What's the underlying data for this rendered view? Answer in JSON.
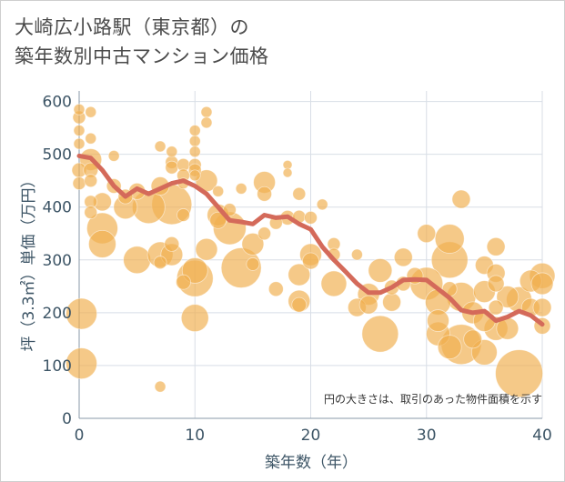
{
  "title": {
    "line1": "大崎広小路駅（東京都）の",
    "line2": "築年数別中古マンション価格"
  },
  "colors": {
    "bubble": "#f0b050",
    "line": "#d46a5a",
    "grid": "#d8dee6",
    "tick": "#3d5566"
  },
  "chart_data": {
    "type": "scatter",
    "title": "大崎広小路駅（東京都）の築年数別中古マンション価格",
    "xlabel": "築年数（年）",
    "ylabel": "坪（3.3㎡）単価（万円）",
    "xlim": [
      0,
      40
    ],
    "ylim": [
      0,
      620
    ],
    "xticks": [
      0,
      10,
      20,
      30,
      40
    ],
    "yticks": [
      0,
      100,
      200,
      300,
      400,
      500,
      600
    ],
    "annotation": "円の大きさは、取引のあった物件面積を示す",
    "grid": true,
    "series": [
      {
        "kind": "bubbles",
        "points": [
          {
            "x": 0,
            "y": 585,
            "s": 6
          },
          {
            "x": 0,
            "y": 570,
            "s": 7
          },
          {
            "x": 0,
            "y": 545,
            "s": 6
          },
          {
            "x": 0,
            "y": 520,
            "s": 6
          },
          {
            "x": 0,
            "y": 470,
            "s": 8
          },
          {
            "x": 0,
            "y": 445,
            "s": 7
          },
          {
            "x": 0.2,
            "y": 198,
            "s": 17
          },
          {
            "x": 0.2,
            "y": 104,
            "s": 17
          },
          {
            "x": 1,
            "y": 580,
            "s": 6
          },
          {
            "x": 1,
            "y": 530,
            "s": 6
          },
          {
            "x": 1,
            "y": 490,
            "s": 12
          },
          {
            "x": 1,
            "y": 470,
            "s": 8
          },
          {
            "x": 1,
            "y": 450,
            "s": 7
          },
          {
            "x": 1,
            "y": 410,
            "s": 7
          },
          {
            "x": 1,
            "y": 390,
            "s": 7
          },
          {
            "x": 2,
            "y": 360,
            "s": 17
          },
          {
            "x": 2,
            "y": 330,
            "s": 15
          },
          {
            "x": 2,
            "y": 410,
            "s": 10
          },
          {
            "x": 3,
            "y": 497,
            "s": 6
          },
          {
            "x": 3,
            "y": 440,
            "s": 8
          },
          {
            "x": 4,
            "y": 400,
            "s": 13
          },
          {
            "x": 4,
            "y": 420,
            "s": 8
          },
          {
            "x": 5,
            "y": 430,
            "s": 9
          },
          {
            "x": 5,
            "y": 300,
            "s": 15
          },
          {
            "x": 6,
            "y": 400,
            "s": 18
          },
          {
            "x": 7,
            "y": 515,
            "s": 6
          },
          {
            "x": 7,
            "y": 440,
            "s": 10
          },
          {
            "x": 7,
            "y": 310,
            "s": 14
          },
          {
            "x": 7,
            "y": 295,
            "s": 7
          },
          {
            "x": 7,
            "y": 60,
            "s": 6
          },
          {
            "x": 8,
            "y": 505,
            "s": 6
          },
          {
            "x": 8,
            "y": 485,
            "s": 7
          },
          {
            "x": 8,
            "y": 475,
            "s": 7
          },
          {
            "x": 8,
            "y": 405,
            "s": 22
          },
          {
            "x": 8,
            "y": 330,
            "s": 8
          },
          {
            "x": 8,
            "y": 310,
            "s": 12
          },
          {
            "x": 9,
            "y": 480,
            "s": 7
          },
          {
            "x": 9,
            "y": 460,
            "s": 7
          },
          {
            "x": 9,
            "y": 445,
            "s": 6
          },
          {
            "x": 9,
            "y": 385,
            "s": 7
          },
          {
            "x": 9,
            "y": 258,
            "s": 8
          },
          {
            "x": 10,
            "y": 545,
            "s": 6
          },
          {
            "x": 10,
            "y": 525,
            "s": 6
          },
          {
            "x": 10,
            "y": 505,
            "s": 6
          },
          {
            "x": 10,
            "y": 480,
            "s": 7
          },
          {
            "x": 10,
            "y": 470,
            "s": 7
          },
          {
            "x": 10,
            "y": 460,
            "s": 6
          },
          {
            "x": 10,
            "y": 280,
            "s": 14
          },
          {
            "x": 10,
            "y": 265,
            "s": 20
          },
          {
            "x": 10,
            "y": 190,
            "s": 15
          },
          {
            "x": 11,
            "y": 580,
            "s": 6
          },
          {
            "x": 11,
            "y": 560,
            "s": 6
          },
          {
            "x": 11,
            "y": 450,
            "s": 12
          },
          {
            "x": 11,
            "y": 320,
            "s": 12
          },
          {
            "x": 12,
            "y": 430,
            "s": 6
          },
          {
            "x": 12,
            "y": 385,
            "s": 12
          },
          {
            "x": 12,
            "y": 375,
            "s": 9
          },
          {
            "x": 13,
            "y": 395,
            "s": 7
          },
          {
            "x": 13,
            "y": 360,
            "s": 18
          },
          {
            "x": 14,
            "y": 435,
            "s": 6
          },
          {
            "x": 14,
            "y": 285,
            "s": 22
          },
          {
            "x": 15,
            "y": 330,
            "s": 12
          },
          {
            "x": 15,
            "y": 292,
            "s": 7
          },
          {
            "x": 16,
            "y": 447,
            "s": 12
          },
          {
            "x": 16,
            "y": 425,
            "s": 8
          },
          {
            "x": 16,
            "y": 350,
            "s": 7
          },
          {
            "x": 17,
            "y": 370,
            "s": 7
          },
          {
            "x": 17,
            "y": 245,
            "s": 8
          },
          {
            "x": 18,
            "y": 480,
            "s": 5
          },
          {
            "x": 18,
            "y": 465,
            "s": 5
          },
          {
            "x": 18,
            "y": 380,
            "s": 8
          },
          {
            "x": 19,
            "y": 425,
            "s": 7
          },
          {
            "x": 19,
            "y": 382,
            "s": 7
          },
          {
            "x": 19,
            "y": 272,
            "s": 12
          },
          {
            "x": 19,
            "y": 222,
            "s": 12
          },
          {
            "x": 19,
            "y": 215,
            "s": 8
          },
          {
            "x": 20,
            "y": 380,
            "s": 7
          },
          {
            "x": 20,
            "y": 310,
            "s": 12
          },
          {
            "x": 20,
            "y": 298,
            "s": 9
          },
          {
            "x": 21,
            "y": 405,
            "s": 6
          },
          {
            "x": 22,
            "y": 330,
            "s": 7
          },
          {
            "x": 22,
            "y": 310,
            "s": 7
          },
          {
            "x": 22,
            "y": 255,
            "s": 14
          },
          {
            "x": 24,
            "y": 310,
            "s": 6
          },
          {
            "x": 24,
            "y": 210,
            "s": 10
          },
          {
            "x": 25,
            "y": 235,
            "s": 12
          },
          {
            "x": 25,
            "y": 215,
            "s": 10
          },
          {
            "x": 26,
            "y": 280,
            "s": 13
          },
          {
            "x": 26,
            "y": 160,
            "s": 20
          },
          {
            "x": 27,
            "y": 248,
            "s": 8
          },
          {
            "x": 27,
            "y": 220,
            "s": 10
          },
          {
            "x": 28,
            "y": 305,
            "s": 10
          },
          {
            "x": 28,
            "y": 255,
            "s": 8
          },
          {
            "x": 29,
            "y": 270,
            "s": 9
          },
          {
            "x": 30,
            "y": 350,
            "s": 10
          },
          {
            "x": 30,
            "y": 255,
            "s": 18
          },
          {
            "x": 31,
            "y": 220,
            "s": 14
          },
          {
            "x": 31,
            "y": 185,
            "s": 12
          },
          {
            "x": 31,
            "y": 160,
            "s": 13
          },
          {
            "x": 32,
            "y": 340,
            "s": 16
          },
          {
            "x": 32,
            "y": 300,
            "s": 20
          },
          {
            "x": 32,
            "y": 245,
            "s": 8
          },
          {
            "x": 32,
            "y": 135,
            "s": 13
          },
          {
            "x": 33,
            "y": 415,
            "s": 10
          },
          {
            "x": 33,
            "y": 230,
            "s": 16
          },
          {
            "x": 33,
            "y": 140,
            "s": 22
          },
          {
            "x": 34,
            "y": 200,
            "s": 12
          },
          {
            "x": 34,
            "y": 150,
            "s": 10
          },
          {
            "x": 35,
            "y": 290,
            "s": 10
          },
          {
            "x": 35,
            "y": 240,
            "s": 12
          },
          {
            "x": 35,
            "y": 185,
            "s": 12
          },
          {
            "x": 35,
            "y": 125,
            "s": 14
          },
          {
            "x": 36,
            "y": 325,
            "s": 10
          },
          {
            "x": 36,
            "y": 275,
            "s": 10
          },
          {
            "x": 36,
            "y": 255,
            "s": 9
          },
          {
            "x": 36,
            "y": 210,
            "s": 8
          },
          {
            "x": 36,
            "y": 170,
            "s": 13
          },
          {
            "x": 37,
            "y": 230,
            "s": 12
          },
          {
            "x": 37,
            "y": 170,
            "s": 12
          },
          {
            "x": 38,
            "y": 225,
            "s": 14
          },
          {
            "x": 38,
            "y": 85,
            "s": 26
          },
          {
            "x": 39,
            "y": 260,
            "s": 12
          },
          {
            "x": 39,
            "y": 210,
            "s": 10
          },
          {
            "x": 40,
            "y": 270,
            "s": 14
          },
          {
            "x": 40,
            "y": 255,
            "s": 12
          },
          {
            "x": 40,
            "y": 210,
            "s": 10
          },
          {
            "x": 40,
            "y": 175,
            "s": 9
          }
        ]
      },
      {
        "kind": "line",
        "x": [
          0,
          1,
          2,
          3,
          4,
          5,
          6,
          7,
          8,
          9,
          10,
          11,
          12,
          13,
          14,
          15,
          16,
          17,
          18,
          19,
          20,
          21,
          22,
          23,
          24,
          25,
          26,
          27,
          28,
          29,
          30,
          31,
          32,
          33,
          34,
          35,
          36,
          37,
          38,
          39,
          40
        ],
        "y": [
          497,
          493,
          470,
          440,
          420,
          435,
          425,
          435,
          445,
          450,
          440,
          425,
          400,
          375,
          372,
          368,
          385,
          380,
          382,
          368,
          358,
          325,
          300,
          278,
          255,
          238,
          238,
          248,
          262,
          263,
          262,
          245,
          228,
          205,
          200,
          203,
          185,
          192,
          203,
          195,
          178
        ]
      }
    ]
  }
}
